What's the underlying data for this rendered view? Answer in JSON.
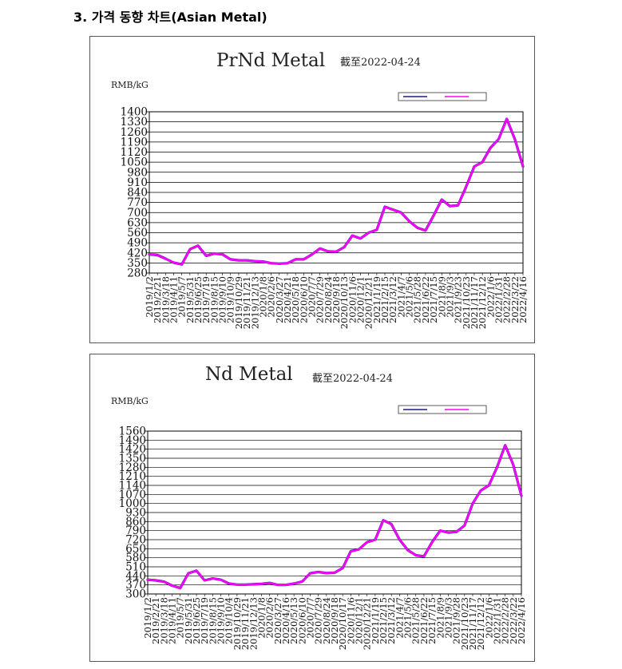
{
  "heading": "3. 가격 동향 차트(Asian Metal)",
  "colors": {
    "series_a": "#1a1a8c",
    "series_b": "#ff00ff",
    "grid": "#000000"
  },
  "chart_data": [
    {
      "type": "line",
      "title": "PrNd Metal",
      "subtitle": "截至2022-04-24",
      "ylabel": "RMB/kG",
      "ylim": [
        280,
        1400
      ],
      "yticks": [
        280,
        350,
        420,
        490,
        560,
        630,
        700,
        770,
        840,
        910,
        980,
        1050,
        1120,
        1190,
        1260,
        1330,
        1400
      ],
      "grid": true,
      "legend_position": "top-right",
      "xticks": [
        "2019/1/2",
        "2019/2/21",
        "2019/3/18",
        "2019/4/11",
        "2019/5/7",
        "2019/5/31",
        "2019/6/25",
        "2019/7/19",
        "2019/8/15",
        "2019/9/10",
        "2019/10/9",
        "2019/10/29",
        "2019/11/21",
        "2019/12/13",
        "2020/1/8",
        "2020/2/6",
        "2020/3/27",
        "2020/4/21",
        "2020/5/18",
        "2020/6/10",
        "2020/7/7",
        "2020/7/29",
        "2020/8/24",
        "2020/9/18",
        "2020/10/13",
        "2020/11/6",
        "2020/12/1",
        "2020/12/21",
        "2021/1/19",
        "2021/2/15",
        "2021/3/12",
        "2021/4/7",
        "2021/5/6",
        "2021/5/28",
        "2021/6/22",
        "2021/7/15",
        "2021/8/9",
        "2021/9/3",
        "2021/9/23",
        "2021/10/23",
        "2021/11/17",
        "2021/12/12",
        "2022/1/6",
        "2022/1/31",
        "2022/2/28",
        "2022/3/22",
        "2022/4/16"
      ],
      "x": [
        "2019/1/2",
        "2019/2/21",
        "2019/3/18",
        "2019/4/11",
        "2019/5/7",
        "2019/5/31",
        "2019/6/25",
        "2019/7/19",
        "2019/8/15",
        "2019/9/10",
        "2019/10/9",
        "2019/10/29",
        "2019/11/21",
        "2019/12/13",
        "2020/1/8",
        "2020/2/6",
        "2020/3/27",
        "2020/4/21",
        "2020/5/18",
        "2020/6/10",
        "2020/7/7",
        "2020/7/29",
        "2020/8/24",
        "2020/9/18",
        "2020/10/13",
        "2020/11/6",
        "2020/12/1",
        "2020/12/21",
        "2021/1/19",
        "2021/2/15",
        "2021/3/12",
        "2021/4/7",
        "2021/5/6",
        "2021/5/28",
        "2021/6/22",
        "2021/7/15",
        "2021/8/9",
        "2021/9/3",
        "2021/9/23",
        "2021/10/23",
        "2021/11/17",
        "2021/12/12",
        "2022/1/6",
        "2022/1/31",
        "2022/2/28",
        "2022/3/22",
        "2022/4/16"
      ],
      "series": [
        {
          "values": [
            410,
            405,
            380,
            352,
            340,
            445,
            470,
            400,
            415,
            410,
            375,
            368,
            368,
            362,
            360,
            348,
            345,
            348,
            375,
            375,
            408,
            450,
            430,
            428,
            460,
            540,
            520,
            560,
            580,
            740,
            720,
            700,
            640,
            595,
            575,
            680,
            790,
            745,
            750,
            880,
            1020,
            1050,
            1150,
            1210,
            1350,
            1210,
            1020
          ]
        },
        {
          "values": [
            410,
            405,
            380,
            352,
            340,
            445,
            470,
            400,
            415,
            410,
            375,
            368,
            368,
            362,
            360,
            348,
            345,
            348,
            375,
            375,
            408,
            450,
            430,
            428,
            460,
            540,
            520,
            560,
            580,
            740,
            720,
            700,
            640,
            595,
            575,
            680,
            790,
            745,
            750,
            880,
            1020,
            1050,
            1150,
            1210,
            1350,
            1210,
            1020
          ]
        }
      ]
    },
    {
      "type": "line",
      "title": "Nd Metal",
      "subtitle": "截至2022-04-24",
      "ylabel": "RMB/kG",
      "ylim": [
        300,
        1560
      ],
      "yticks": [
        300,
        370,
        440,
        510,
        580,
        650,
        720,
        790,
        860,
        930,
        1000,
        1070,
        1140,
        1210,
        1280,
        1350,
        1420,
        1490,
        1560
      ],
      "grid": true,
      "legend_position": "top-right",
      "xticks": [
        "2019/1/2",
        "2019/2/21",
        "2019/3/18",
        "2019/4/11",
        "2019/5/7",
        "2019/5/31",
        "2019/6/25",
        "2019/7/19",
        "2019/8/15",
        "2019/9/10",
        "2019/10/4",
        "2019/10/29",
        "2019/11/21",
        "2019/12/13",
        "2020/1/8",
        "2020/2/6",
        "2020/3/27",
        "2020/4/16",
        "2020/5/13",
        "2020/6/10",
        "2020/7/7",
        "2020/7/29",
        "2020/8/24",
        "2020/9/18",
        "2020/10/17",
        "2020/11/6",
        "2020/12/1",
        "2020/12/21",
        "2021/1/19",
        "2021/2/15",
        "2021/3/12",
        "2021/4/7",
        "2021/5/6",
        "2021/5/28",
        "2021/6/22",
        "2021/7/15",
        "2021/8/9",
        "2021/9/3",
        "2021/9/28",
        "2021/10/23",
        "2021/11/17",
        "2021/12/12",
        "2022/1/6",
        "2022/1/31",
        "2022/2/28",
        "2022/3/22",
        "2022/4/16"
      ],
      "x": [
        "2019/1/2",
        "2019/2/21",
        "2019/3/18",
        "2019/4/11",
        "2019/5/7",
        "2019/5/31",
        "2019/6/25",
        "2019/7/19",
        "2019/8/15",
        "2019/9/10",
        "2019/10/4",
        "2019/10/29",
        "2019/11/21",
        "2019/12/13",
        "2020/1/8",
        "2020/2/6",
        "2020/3/27",
        "2020/4/16",
        "2020/5/13",
        "2020/6/10",
        "2020/7/7",
        "2020/7/29",
        "2020/8/24",
        "2020/9/18",
        "2020/10/17",
        "2020/11/6",
        "2020/12/1",
        "2020/12/21",
        "2021/1/19",
        "2021/2/15",
        "2021/3/12",
        "2021/4/7",
        "2021/5/6",
        "2021/5/28",
        "2021/6/22",
        "2021/7/15",
        "2021/8/9",
        "2021/9/3",
        "2021/9/28",
        "2021/10/23",
        "2021/11/17",
        "2021/12/12",
        "2022/1/6",
        "2022/1/31",
        "2022/2/28",
        "2022/3/22",
        "2022/4/16"
      ],
      "series": [
        {
          "values": [
            410,
            405,
            395,
            365,
            345,
            460,
            480,
            405,
            420,
            410,
            380,
            372,
            372,
            375,
            378,
            385,
            370,
            370,
            380,
            395,
            460,
            470,
            462,
            465,
            500,
            630,
            645,
            700,
            720,
            870,
            840,
            720,
            640,
            600,
            590,
            700,
            790,
            775,
            780,
            830,
            1000,
            1100,
            1140,
            1280,
            1450,
            1300,
            1060
          ]
        },
        {
          "values": [
            410,
            405,
            395,
            365,
            345,
            460,
            480,
            405,
            420,
            410,
            380,
            372,
            372,
            375,
            378,
            385,
            370,
            370,
            380,
            395,
            460,
            470,
            462,
            465,
            500,
            630,
            645,
            700,
            720,
            870,
            840,
            720,
            640,
            600,
            590,
            700,
            790,
            775,
            780,
            830,
            1000,
            1100,
            1140,
            1280,
            1450,
            1300,
            1060
          ]
        }
      ]
    }
  ]
}
